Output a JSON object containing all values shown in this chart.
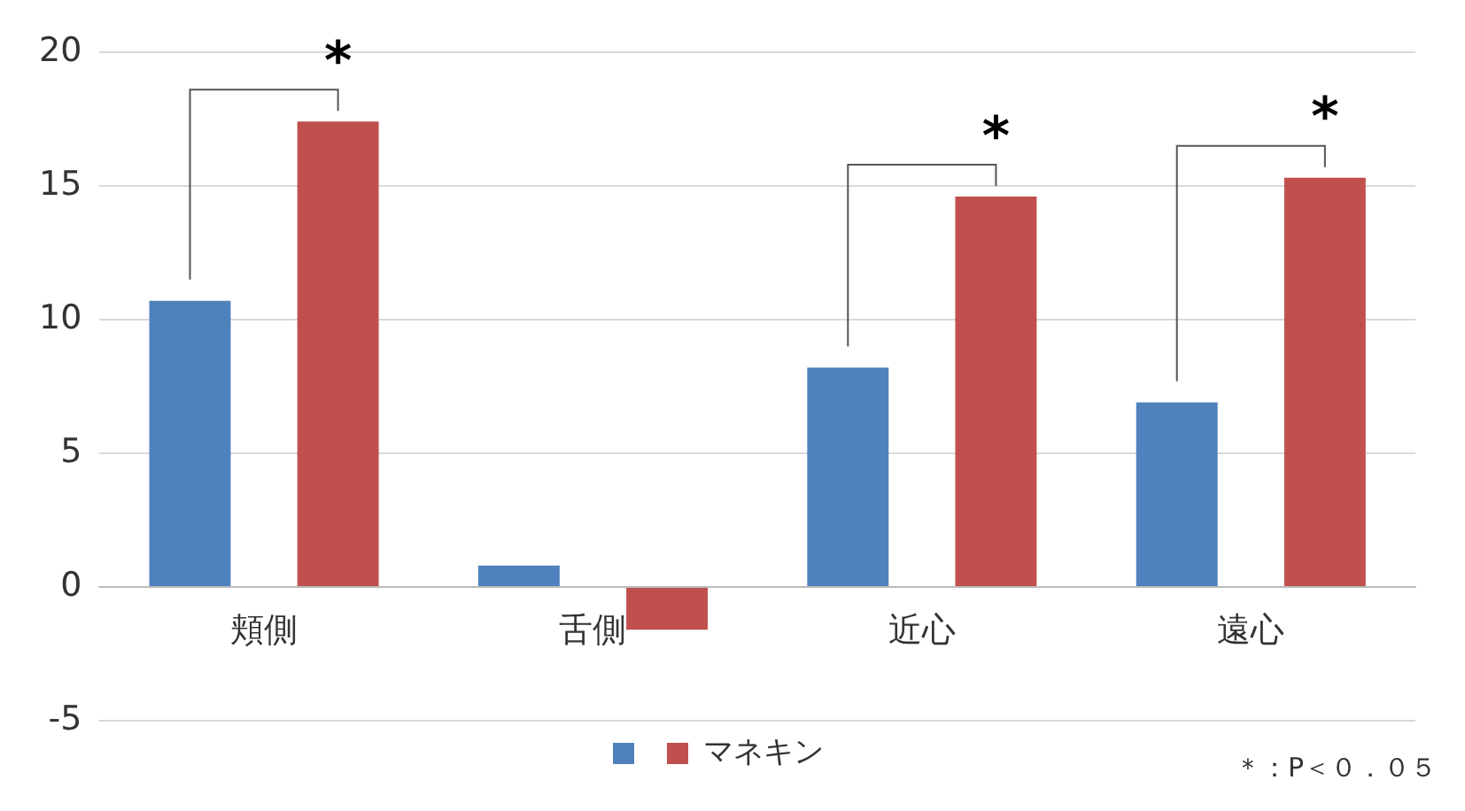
{
  "chart_data": {
    "type": "bar",
    "categories": [
      "頬側",
      "舌側",
      "近心",
      "遠心"
    ],
    "series": [
      {
        "color": "#4f81bd",
        "values": [
          10.7,
          0.8,
          8.2,
          6.9
        ]
      },
      {
        "name": "マネキン",
        "color": "#c0504d",
        "values": [
          17.4,
          -1.6,
          14.6,
          15.3
        ]
      }
    ],
    "ylim": [
      -5,
      20
    ],
    "yticks": [
      -5,
      0,
      5,
      10,
      15,
      20
    ],
    "grid": "y",
    "legend": "bottom",
    "annotations": [
      "*",
      "*",
      "*",
      "＊：P＜０．０５"
    ]
  }
}
